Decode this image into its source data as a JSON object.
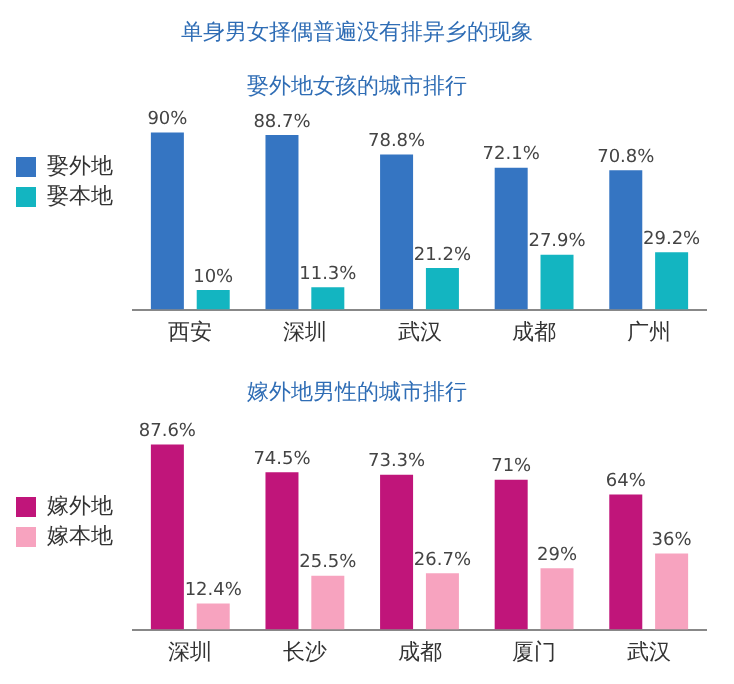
{
  "chart_data": [
    {
      "type": "bar",
      "title": "单身男女择偶普遍没有排异乡的现象",
      "subtitle": "娶外地女孩的城市排行",
      "categories": [
        "西安",
        "深圳",
        "武汉",
        "成都",
        "广州"
      ],
      "series": [
        {
          "name": "娶外地",
          "color": "#3575c2",
          "values": [
            90,
            88.7,
            78.8,
            72.1,
            70.8
          ],
          "value_labels": [
            "90%",
            "88.7%",
            "78.8%",
            "72.1%",
            "70.8%"
          ]
        },
        {
          "name": "娶本地",
          "color": "#13b5c1",
          "values": [
            10,
            11.3,
            21.2,
            27.9,
            29.2
          ],
          "value_labels": [
            "10%",
            "11.3%",
            "21.2%",
            "27.9%",
            "29.2%"
          ]
        }
      ],
      "legend": "left",
      "grid": false
    },
    {
      "type": "bar",
      "title": "嫁外地男性的城市排行",
      "categories": [
        "深圳",
        "长沙",
        "成都",
        "厦门",
        "武汉"
      ],
      "series": [
        {
          "name": "嫁外地",
          "color": "#c0157a",
          "values": [
            87.6,
            74.5,
            73.3,
            71,
            64
          ],
          "value_labels": [
            "87.6%",
            "74.5%",
            "73.3%",
            "71%",
            "64%"
          ]
        },
        {
          "name": "嫁本地",
          "color": "#f7a3bf",
          "values": [
            12.4,
            25.5,
            26.7,
            29,
            36
          ],
          "value_labels": [
            "12.4%",
            "25.5%",
            "26.7%",
            "29%",
            "36%"
          ]
        }
      ],
      "legend": "left",
      "grid": false
    }
  ]
}
